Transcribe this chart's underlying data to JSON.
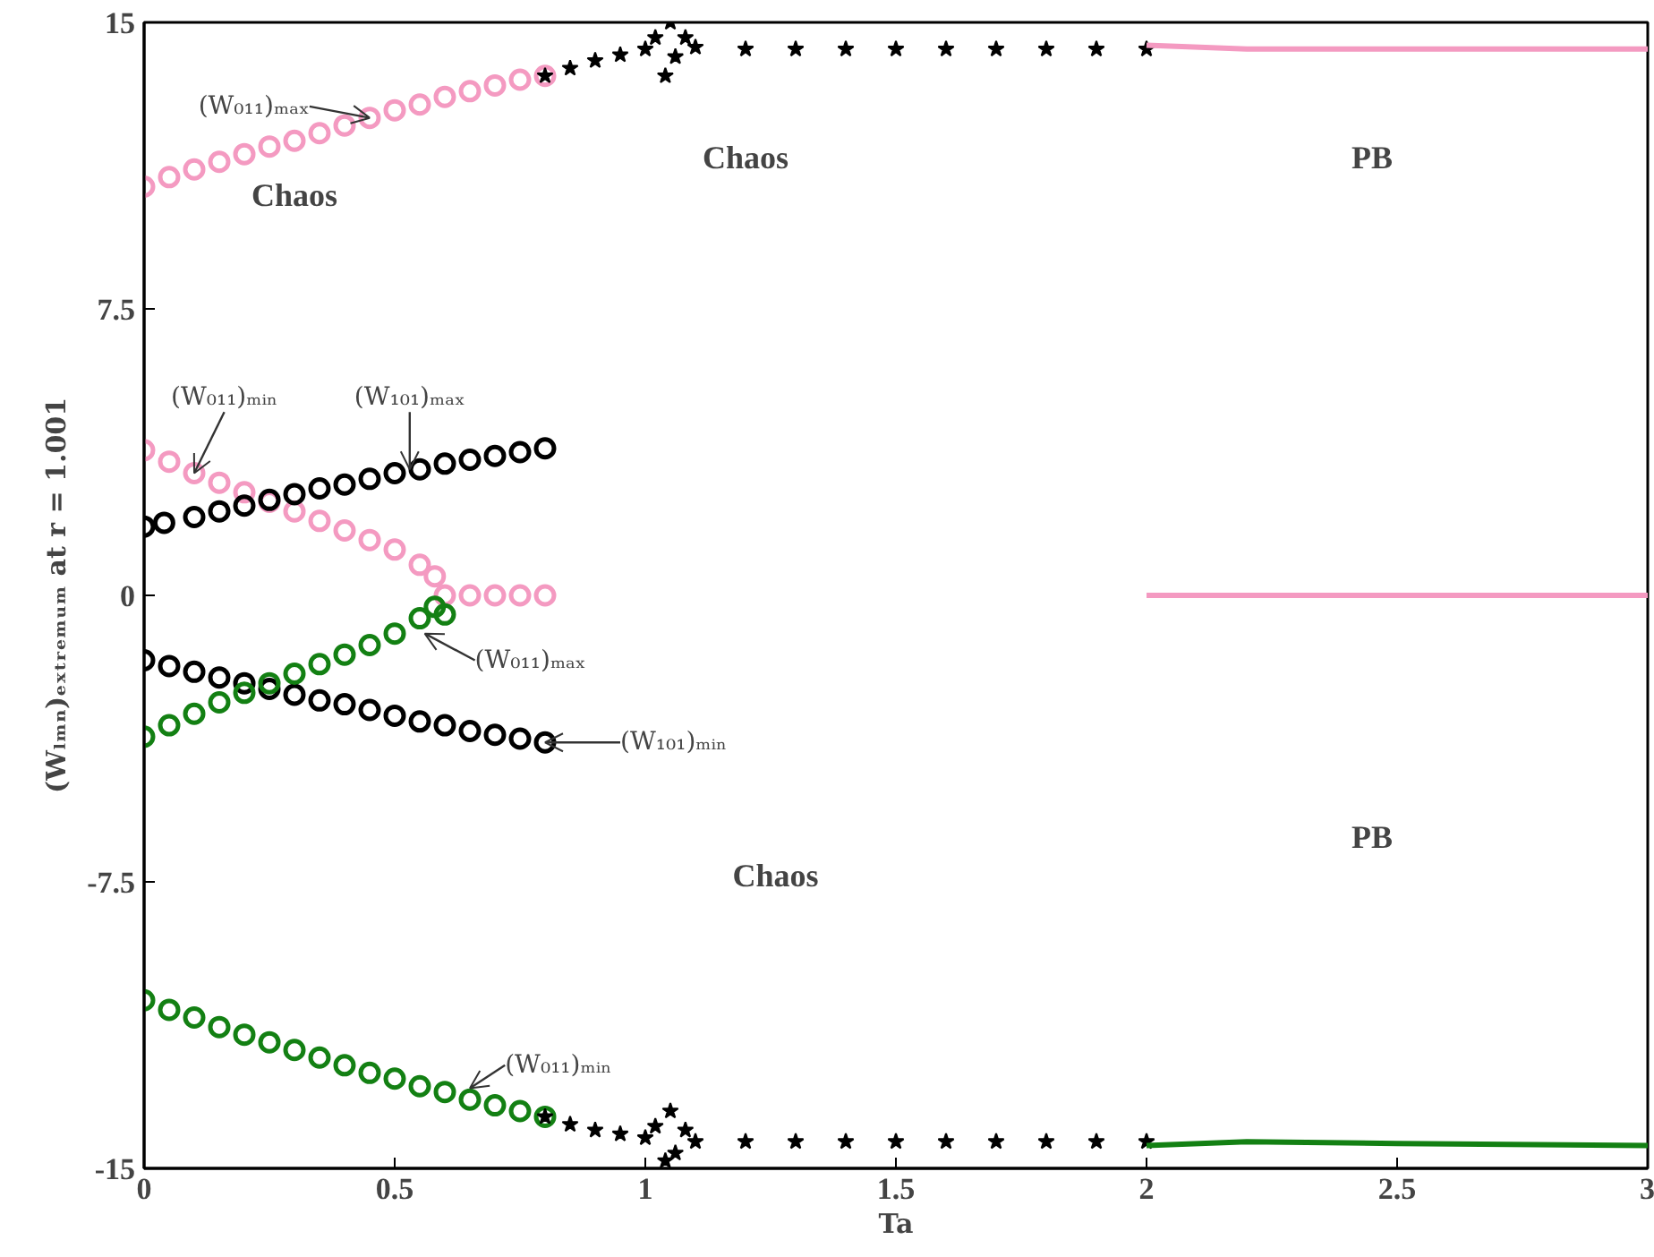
{
  "chart_data": {
    "type": "scatter",
    "xlabel": "Ta",
    "ylabel": "(Wₗₘₙ)ₑₓₜᵣₑₘᵤₘ at r = 1.001",
    "xlim": [
      0,
      3
    ],
    "ylim": [
      -15,
      15
    ],
    "xticks": [
      0,
      0.5,
      1,
      1.5,
      2,
      2.5,
      3
    ],
    "yticks": [
      -15,
      -7.5,
      0,
      7.5,
      15
    ],
    "grid": false,
    "series": [
      {
        "marker": "circle",
        "color": "#f49ac1",
        "x": [
          0,
          0.05,
          0.1,
          0.15,
          0.2,
          0.25,
          0.3,
          0.35,
          0.4,
          0.45,
          0.5,
          0.55,
          0.6,
          0.65,
          0.7,
          0.75,
          0.8
        ],
        "values": [
          10.7,
          10.95,
          11.15,
          11.35,
          11.55,
          11.75,
          11.9,
          12.1,
          12.3,
          12.5,
          12.7,
          12.85,
          13.05,
          13.2,
          13.35,
          13.5,
          13.6
        ]
      },
      {
        "marker": "star",
        "color": "#000000",
        "x": [
          0.8,
          0.85,
          0.9,
          0.95,
          1.0,
          1.02,
          1.04,
          1.05,
          1.06,
          1.08,
          1.1,
          1.2,
          1.3,
          1.4,
          1.5,
          1.6,
          1.7,
          1.8,
          1.9,
          2.0
        ],
        "values": [
          13.6,
          13.8,
          14.0,
          14.15,
          14.3,
          14.6,
          13.6,
          15.0,
          14.1,
          14.6,
          14.35,
          14.3,
          14.3,
          14.3,
          14.3,
          14.3,
          14.3,
          14.3,
          14.3,
          14.3
        ]
      },
      {
        "type": "line",
        "color": "#f49ac1",
        "x": [
          2,
          2.2,
          2.5,
          3
        ],
        "values": [
          14.4,
          14.3,
          14.3,
          14.3
        ]
      },
      {
        "marker": "circle",
        "color": "#f49ac1",
        "x": [
          0,
          0.05,
          0.1,
          0.15,
          0.2,
          0.25,
          0.3,
          0.35,
          0.4,
          0.45,
          0.5,
          0.55,
          0.58,
          0.6,
          0.65,
          0.7,
          0.75,
          0.8
        ],
        "values": [
          3.8,
          3.5,
          3.2,
          2.95,
          2.7,
          2.45,
          2.2,
          1.95,
          1.7,
          1.45,
          1.2,
          0.8,
          0.5,
          0,
          0,
          0,
          0,
          0
        ]
      },
      {
        "type": "line",
        "color": "#f49ac1",
        "x": [
          2,
          3
        ],
        "values": [
          0,
          0
        ]
      },
      {
        "marker": "circle",
        "color": "#000000",
        "x": [
          0,
          0.04,
          0.1,
          0.15,
          0.2,
          0.25,
          0.3,
          0.35,
          0.4,
          0.45,
          0.5,
          0.55,
          0.6,
          0.65,
          0.7,
          0.75,
          0.8
        ],
        "values": [
          1.8,
          1.9,
          2.05,
          2.2,
          2.35,
          2.5,
          2.65,
          2.8,
          2.9,
          3.05,
          3.2,
          3.3,
          3.45,
          3.55,
          3.65,
          3.75,
          3.85
        ]
      },
      {
        "marker": "circle",
        "color": "#000000",
        "x": [
          0,
          0.05,
          0.1,
          0.15,
          0.2,
          0.25,
          0.3,
          0.35,
          0.4,
          0.45,
          0.5,
          0.55,
          0.6,
          0.65,
          0.7,
          0.75,
          0.8
        ],
        "values": [
          -1.7,
          -1.85,
          -2.0,
          -2.15,
          -2.3,
          -2.45,
          -2.6,
          -2.75,
          -2.85,
          -3.0,
          -3.15,
          -3.3,
          -3.4,
          -3.55,
          -3.65,
          -3.75,
          -3.85
        ]
      },
      {
        "marker": "circle",
        "color": "#138013",
        "x": [
          0,
          0.05,
          0.1,
          0.15,
          0.2,
          0.25,
          0.3,
          0.35,
          0.4,
          0.45,
          0.5,
          0.55,
          0.58,
          0.6
        ],
        "values": [
          -3.7,
          -3.4,
          -3.1,
          -2.8,
          -2.55,
          -2.3,
          -2.05,
          -1.8,
          -1.55,
          -1.3,
          -1.0,
          -0.6,
          -0.3,
          -0.5
        ]
      },
      {
        "marker": "circle",
        "color": "#138013",
        "x": [
          0,
          0.05,
          0.1,
          0.15,
          0.2,
          0.25,
          0.3,
          0.35,
          0.4,
          0.45,
          0.5,
          0.55,
          0.6,
          0.65,
          0.7,
          0.75,
          0.8
        ],
        "values": [
          -10.6,
          -10.85,
          -11.05,
          -11.3,
          -11.5,
          -11.7,
          -11.9,
          -12.1,
          -12.3,
          -12.5,
          -12.65,
          -12.85,
          -13.0,
          -13.2,
          -13.35,
          -13.5,
          -13.65
        ]
      },
      {
        "marker": "star",
        "color": "#000000",
        "x": [
          0.8,
          0.85,
          0.9,
          0.95,
          1.0,
          1.02,
          1.04,
          1.05,
          1.06,
          1.08,
          1.1,
          1.2,
          1.3,
          1.4,
          1.5,
          1.6,
          1.7,
          1.8,
          1.9,
          2.0
        ],
        "values": [
          -13.65,
          -13.85,
          -14.0,
          -14.1,
          -14.2,
          -13.9,
          -14.8,
          -13.5,
          -14.6,
          -14.0,
          -14.3,
          -14.3,
          -14.3,
          -14.3,
          -14.3,
          -14.3,
          -14.3,
          -14.3,
          -14.3,
          -14.3
        ]
      },
      {
        "type": "line",
        "color": "#138013",
        "x": [
          2,
          2.2,
          2.5,
          3
        ],
        "values": [
          -14.4,
          -14.3,
          -14.35,
          -14.4
        ]
      }
    ],
    "annotations": [
      {
        "text": "(W₀₁₁)ₘₐₓ",
        "x": 0.45,
        "y": 12.5
      },
      {
        "text": "(W₀₁₁)ₘᵢₙ",
        "x": 0.1,
        "y": 3.2
      },
      {
        "text": "(W₁₀₁)ₘₐₓ",
        "x": 0.53,
        "y": 3.3
      },
      {
        "text": "(W₀₁₁)ₘₐₓ",
        "x": 0.56,
        "y": -1.0
      },
      {
        "text": "(W₁₀₁)ₘᵢₙ",
        "x": 0.8,
        "y": -3.85
      },
      {
        "text": "(W₀₁₁)ₘᵢₙ",
        "x": 0.65,
        "y": -12.9
      },
      "Chaos",
      "Chaos",
      "PB",
      "Chaos",
      "PB"
    ]
  }
}
